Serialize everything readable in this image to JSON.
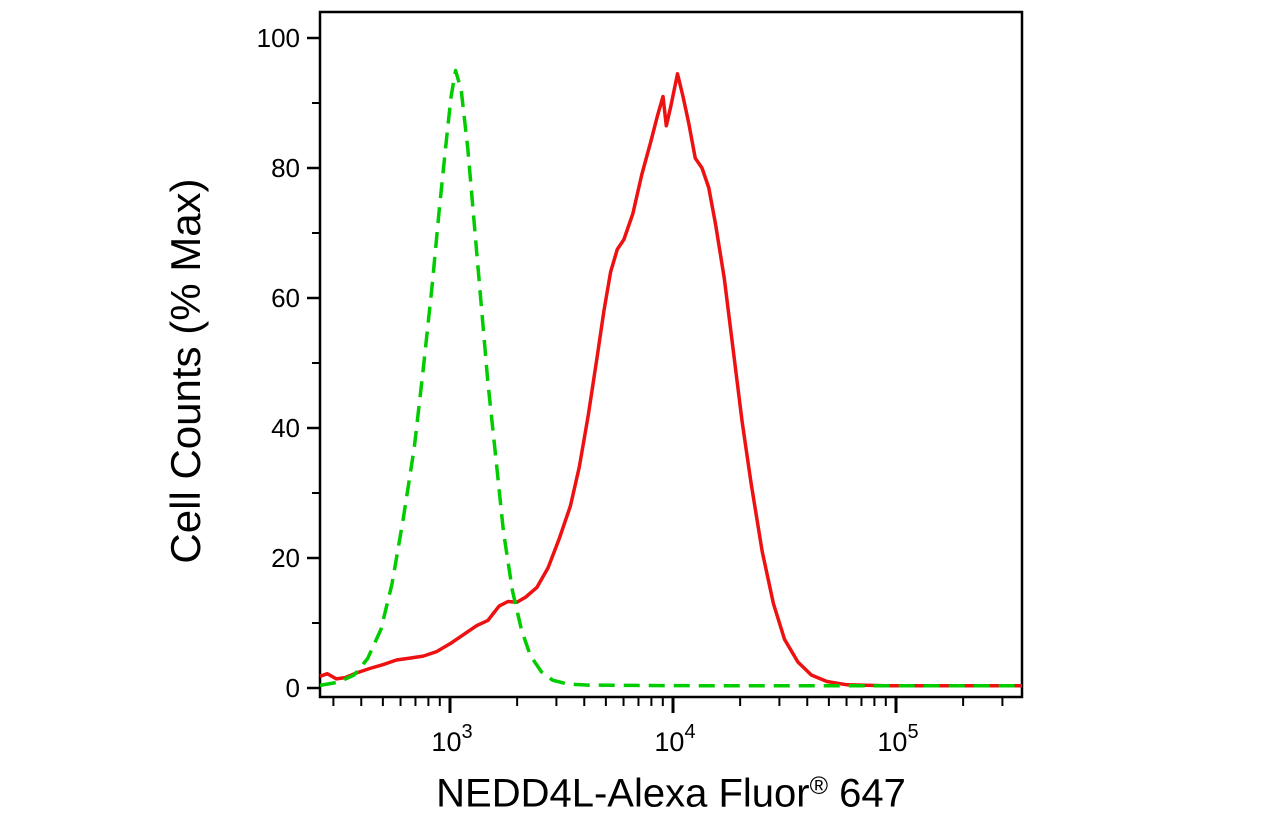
{
  "figure": {
    "y_axis_label": "Cell Counts (% Max)",
    "x_label_main": "NEDD4L-Alexa Fluor",
    "x_label_sup": "®",
    "x_label_suffix": " 647"
  },
  "chart_data": {
    "type": "line",
    "title": "",
    "xlabel": "NEDD4L-Alexa Fluor® 647",
    "ylabel": "Cell Counts (% Max)",
    "x_scale": "log10",
    "x_range_log10": [
      2.417,
      5.565
    ],
    "ylim": [
      0,
      100
    ],
    "grid": "off",
    "legend": "none",
    "y_ticks_major": [
      0,
      20,
      40,
      60,
      80,
      100
    ],
    "y_minor_step": 10,
    "x_ticks_major_log10": [
      3,
      4,
      5
    ],
    "x_tick_base": "10",
    "x_tick_exponents": [
      "3",
      "4",
      "5"
    ],
    "axis_color": "#000000",
    "series": [
      {
        "id": "red-solid",
        "name": "red-solid",
        "style": "solid",
        "color": "#ee1111",
        "dash": "",
        "points": [
          [
            2.417,
            1.8
          ],
          [
            2.45,
            2.2
          ],
          [
            2.49,
            1.4
          ],
          [
            2.53,
            1.6
          ],
          [
            2.58,
            2.3
          ],
          [
            2.64,
            3.0
          ],
          [
            2.7,
            3.6
          ],
          [
            2.76,
            4.3
          ],
          [
            2.82,
            4.6
          ],
          [
            2.88,
            4.9
          ],
          [
            2.94,
            5.6
          ],
          [
            3.0,
            6.8
          ],
          [
            3.06,
            8.2
          ],
          [
            3.12,
            9.6
          ],
          [
            3.17,
            10.4
          ],
          [
            3.22,
            12.6
          ],
          [
            3.26,
            13.3
          ],
          [
            3.3,
            13.2
          ],
          [
            3.34,
            14.0
          ],
          [
            3.39,
            15.5
          ],
          [
            3.44,
            18.5
          ],
          [
            3.49,
            23
          ],
          [
            3.54,
            28
          ],
          [
            3.58,
            34
          ],
          [
            3.62,
            42
          ],
          [
            3.66,
            51
          ],
          [
            3.69,
            58
          ],
          [
            3.72,
            64
          ],
          [
            3.75,
            67.5
          ],
          [
            3.78,
            69
          ],
          [
            3.82,
            73
          ],
          [
            3.86,
            79
          ],
          [
            3.9,
            84
          ],
          [
            3.93,
            88
          ],
          [
            3.955,
            91
          ],
          [
            3.97,
            86.5
          ],
          [
            3.99,
            89.5
          ],
          [
            4.02,
            94.5
          ],
          [
            4.045,
            91
          ],
          [
            4.07,
            87
          ],
          [
            4.1,
            81.5
          ],
          [
            4.13,
            80
          ],
          [
            4.16,
            77
          ],
          [
            4.19,
            71.5
          ],
          [
            4.23,
            63
          ],
          [
            4.27,
            52
          ],
          [
            4.31,
            41
          ],
          [
            4.35,
            31.5
          ],
          [
            4.4,
            21
          ],
          [
            4.45,
            13
          ],
          [
            4.5,
            7.5
          ],
          [
            4.56,
            4
          ],
          [
            4.62,
            2
          ],
          [
            4.69,
            1
          ],
          [
            4.78,
            0.5
          ],
          [
            4.95,
            0.35
          ],
          [
            5.2,
            0.35
          ],
          [
            5.565,
            0.35
          ]
        ]
      },
      {
        "id": "green-dashed",
        "name": "green-dashed",
        "style": "dashed",
        "color": "#00cc00",
        "dash": "16 9",
        "points": [
          [
            2.417,
            0.4
          ],
          [
            2.5,
            0.9
          ],
          [
            2.57,
            2
          ],
          [
            2.63,
            4.5
          ],
          [
            2.69,
            9
          ],
          [
            2.74,
            16
          ],
          [
            2.79,
            26
          ],
          [
            2.84,
            37
          ],
          [
            2.88,
            49
          ],
          [
            2.92,
            62
          ],
          [
            2.95,
            73
          ],
          [
            2.98,
            83
          ],
          [
            3.005,
            91
          ],
          [
            3.025,
            95
          ],
          [
            3.05,
            92
          ],
          [
            3.08,
            83
          ],
          [
            3.11,
            71
          ],
          [
            3.14,
            59
          ],
          [
            3.17,
            47
          ],
          [
            3.21,
            34
          ],
          [
            3.24,
            24
          ],
          [
            3.28,
            15
          ],
          [
            3.32,
            9
          ],
          [
            3.36,
            5
          ],
          [
            3.41,
            2.5
          ],
          [
            3.46,
            1.2
          ],
          [
            3.53,
            0.6
          ],
          [
            3.62,
            0.45
          ],
          [
            3.8,
            0.4
          ],
          [
            4.1,
            0.35
          ],
          [
            4.5,
            0.35
          ],
          [
            5.0,
            0.35
          ],
          [
            5.565,
            0.35
          ]
        ]
      }
    ]
  }
}
